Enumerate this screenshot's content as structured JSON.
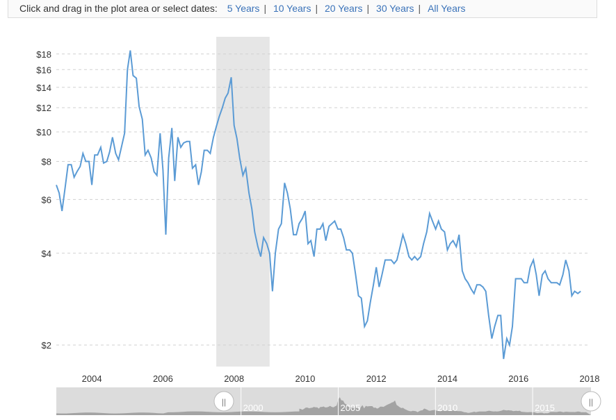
{
  "toolbar": {
    "prompt": "Click and drag in the plot area or select dates:",
    "ranges": [
      "5 Years",
      "10 Years",
      "20 Years",
      "30 Years",
      "All Years"
    ]
  },
  "colors": {
    "line": "#5b9bd5",
    "recession": "#e6e6e6",
    "grid": "#d0d0d0",
    "navigator_bg": "#dcdcdc",
    "navigator_fill": "#8a8a8a"
  },
  "chart_data": {
    "type": "line",
    "title": "",
    "xlabel": "",
    "ylabel": "",
    "y_scale": "log",
    "x_range": [
      2003.0,
      2018.0
    ],
    "y_range": [
      1.7,
      20.5
    ],
    "y_ticks": [
      2,
      4,
      6,
      8,
      10,
      12,
      14,
      16,
      18
    ],
    "y_tick_labels": [
      "$2",
      "$4",
      "$6",
      "$8",
      "$10",
      "$12",
      "$14",
      "$16",
      "$18"
    ],
    "x_ticks": [
      2004,
      2006,
      2008,
      2010,
      2012,
      2014,
      2016,
      2018
    ],
    "x_tick_labels": [
      "2004",
      "2006",
      "2008",
      "2010",
      "2012",
      "2014",
      "2016",
      "2018"
    ],
    "grid": "horizontal dashed",
    "recession_band": [
      2007.5,
      2009.0
    ],
    "series": [
      {
        "values": [
          [
            2003.0,
            6.7
          ],
          [
            2003.08,
            6.3
          ],
          [
            2003.16,
            5.5
          ],
          [
            2003.25,
            6.6
          ],
          [
            2003.33,
            7.8
          ],
          [
            2003.42,
            7.8
          ],
          [
            2003.5,
            7.1
          ],
          [
            2003.58,
            7.4
          ],
          [
            2003.67,
            7.7
          ],
          [
            2003.75,
            8.5
          ],
          [
            2003.83,
            8.0
          ],
          [
            2003.92,
            8.0
          ],
          [
            2004.0,
            6.7
          ],
          [
            2004.08,
            8.4
          ],
          [
            2004.16,
            8.4
          ],
          [
            2004.25,
            8.9
          ],
          [
            2004.33,
            7.9
          ],
          [
            2004.42,
            8.0
          ],
          [
            2004.5,
            8.6
          ],
          [
            2004.58,
            9.6
          ],
          [
            2004.67,
            8.5
          ],
          [
            2004.75,
            8.1
          ],
          [
            2004.83,
            8.9
          ],
          [
            2004.92,
            9.9
          ],
          [
            2005.0,
            16.0
          ],
          [
            2005.08,
            18.5
          ],
          [
            2005.16,
            15.3
          ],
          [
            2005.25,
            15.0
          ],
          [
            2005.33,
            12.1
          ],
          [
            2005.42,
            11.0
          ],
          [
            2005.5,
            8.4
          ],
          [
            2005.58,
            8.7
          ],
          [
            2005.67,
            8.2
          ],
          [
            2005.75,
            7.4
          ],
          [
            2005.83,
            7.2
          ],
          [
            2005.92,
            9.9
          ],
          [
            2006.0,
            7.5
          ],
          [
            2006.08,
            4.6
          ],
          [
            2006.16,
            8.2
          ],
          [
            2006.25,
            10.3
          ],
          [
            2006.33,
            6.9
          ],
          [
            2006.42,
            9.6
          ],
          [
            2006.5,
            8.9
          ],
          [
            2006.58,
            9.2
          ],
          [
            2006.67,
            9.3
          ],
          [
            2006.75,
            9.3
          ],
          [
            2006.83,
            7.6
          ],
          [
            2006.92,
            7.8
          ],
          [
            2007.0,
            6.7
          ],
          [
            2007.08,
            7.4
          ],
          [
            2007.16,
            8.7
          ],
          [
            2007.25,
            8.7
          ],
          [
            2007.33,
            8.5
          ],
          [
            2007.42,
            9.6
          ],
          [
            2007.5,
            10.4
          ],
          [
            2007.58,
            11.2
          ],
          [
            2007.67,
            12.0
          ],
          [
            2007.75,
            12.9
          ],
          [
            2007.83,
            13.4
          ],
          [
            2007.92,
            15.1
          ],
          [
            2008.0,
            10.5
          ],
          [
            2008.08,
            9.5
          ],
          [
            2008.16,
            8.2
          ],
          [
            2008.25,
            7.2
          ],
          [
            2008.33,
            7.6
          ],
          [
            2008.42,
            6.3
          ],
          [
            2008.5,
            5.6
          ],
          [
            2008.58,
            4.7
          ],
          [
            2008.67,
            4.2
          ],
          [
            2008.75,
            3.9
          ],
          [
            2008.83,
            4.5
          ],
          [
            2008.92,
            4.3
          ],
          [
            2009.0,
            4.0
          ],
          [
            2009.08,
            3.0
          ],
          [
            2009.16,
            4.0
          ],
          [
            2009.25,
            4.8
          ],
          [
            2009.33,
            5.0
          ],
          [
            2009.42,
            6.8
          ],
          [
            2009.5,
            6.3
          ],
          [
            2009.58,
            5.6
          ],
          [
            2009.67,
            4.6
          ],
          [
            2009.75,
            4.6
          ],
          [
            2009.83,
            5.0
          ],
          [
            2009.92,
            5.2
          ],
          [
            2010.0,
            5.5
          ],
          [
            2010.08,
            4.3
          ],
          [
            2010.16,
            4.4
          ],
          [
            2010.25,
            3.9
          ],
          [
            2010.33,
            4.8
          ],
          [
            2010.42,
            4.8
          ],
          [
            2010.5,
            5.0
          ],
          [
            2010.58,
            4.4
          ],
          [
            2010.67,
            4.9
          ],
          [
            2010.75,
            5.0
          ],
          [
            2010.83,
            5.1
          ],
          [
            2010.92,
            4.8
          ],
          [
            2011.0,
            4.8
          ],
          [
            2011.08,
            4.5
          ],
          [
            2011.16,
            4.1
          ],
          [
            2011.25,
            4.1
          ],
          [
            2011.33,
            4.0
          ],
          [
            2011.42,
            3.4
          ],
          [
            2011.5,
            2.9
          ],
          [
            2011.58,
            2.85
          ],
          [
            2011.67,
            2.3
          ],
          [
            2011.75,
            2.4
          ],
          [
            2011.83,
            2.75
          ],
          [
            2011.92,
            3.15
          ],
          [
            2012.0,
            3.6
          ],
          [
            2012.08,
            3.1
          ],
          [
            2012.16,
            3.4
          ],
          [
            2012.25,
            3.8
          ],
          [
            2012.33,
            3.8
          ],
          [
            2012.42,
            3.8
          ],
          [
            2012.5,
            3.7
          ],
          [
            2012.58,
            3.8
          ],
          [
            2012.67,
            4.2
          ],
          [
            2012.75,
            4.6
          ],
          [
            2012.83,
            4.3
          ],
          [
            2012.92,
            3.9
          ],
          [
            2013.0,
            3.8
          ],
          [
            2013.08,
            3.9
          ],
          [
            2013.16,
            3.8
          ],
          [
            2013.25,
            3.9
          ],
          [
            2013.33,
            4.3
          ],
          [
            2013.42,
            4.7
          ],
          [
            2013.5,
            5.4
          ],
          [
            2013.58,
            5.1
          ],
          [
            2013.67,
            4.8
          ],
          [
            2013.75,
            5.1
          ],
          [
            2013.83,
            4.8
          ],
          [
            2013.92,
            4.7
          ],
          [
            2014.0,
            4.1
          ],
          [
            2014.08,
            4.3
          ],
          [
            2014.16,
            4.4
          ],
          [
            2014.25,
            4.2
          ],
          [
            2014.33,
            4.6
          ],
          [
            2014.42,
            3.5
          ],
          [
            2014.5,
            3.3
          ],
          [
            2014.58,
            3.2
          ],
          [
            2014.67,
            3.05
          ],
          [
            2014.75,
            2.95
          ],
          [
            2014.83,
            3.15
          ],
          [
            2014.92,
            3.15
          ],
          [
            2015.0,
            3.1
          ],
          [
            2015.08,
            3.0
          ],
          [
            2015.16,
            2.5
          ],
          [
            2015.25,
            2.1
          ],
          [
            2015.33,
            2.3
          ],
          [
            2015.42,
            2.5
          ],
          [
            2015.5,
            2.5
          ],
          [
            2015.58,
            1.8
          ],
          [
            2015.67,
            2.1
          ],
          [
            2015.75,
            2.0
          ],
          [
            2015.83,
            2.3
          ],
          [
            2015.92,
            3.3
          ],
          [
            2016.0,
            3.3
          ],
          [
            2016.08,
            3.3
          ],
          [
            2016.16,
            3.2
          ],
          [
            2016.25,
            3.2
          ],
          [
            2016.33,
            3.6
          ],
          [
            2016.42,
            3.8
          ],
          [
            2016.5,
            3.4
          ],
          [
            2016.58,
            2.9
          ],
          [
            2016.67,
            3.4
          ],
          [
            2016.75,
            3.5
          ],
          [
            2016.83,
            3.3
          ],
          [
            2016.92,
            3.2
          ],
          [
            2017.0,
            3.2
          ],
          [
            2017.08,
            3.2
          ],
          [
            2017.16,
            3.15
          ],
          [
            2017.25,
            3.4
          ],
          [
            2017.33,
            3.8
          ],
          [
            2017.42,
            3.5
          ],
          [
            2017.5,
            2.9
          ],
          [
            2017.58,
            3.0
          ],
          [
            2017.67,
            2.95
          ],
          [
            2017.75,
            3.0
          ]
        ]
      }
    ]
  },
  "navigator": {
    "year_labels": [
      "2000",
      "2005",
      "2010",
      "2015"
    ],
    "handle_left_glyph": "||",
    "handle_right_glyph": "||"
  }
}
